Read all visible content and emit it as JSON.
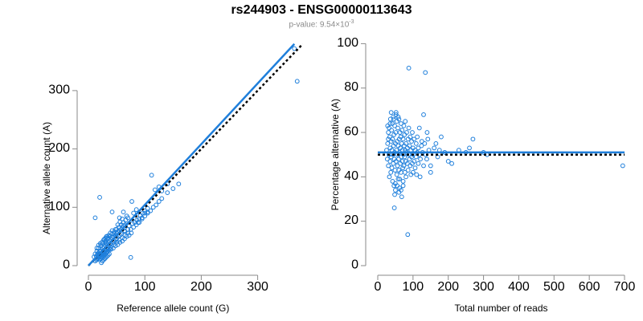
{
  "title": "rs244903 - ENSG00000113643",
  "subtitle": {
    "prefix": "p-value: 9.54×10",
    "exponent": "-3"
  },
  "colors": {
    "points": "#1f7fdb",
    "fit": "#1f7fdb",
    "reference": "#000000",
    "axis": "#8a8a8a"
  },
  "chart_data": [
    {
      "type": "scatter",
      "xlabel": "Reference allele count (G)",
      "ylabel": "Alternative allele count (A)",
      "xlim": [
        0,
        370
      ],
      "ylim": [
        0,
        380
      ],
      "xticks": [
        0,
        100,
        200,
        300
      ],
      "yticks": [
        0,
        100,
        200,
        300
      ],
      "grid": false,
      "points": [
        [
          15,
          10
        ],
        [
          17,
          12
        ],
        [
          18,
          14
        ],
        [
          20,
          15
        ],
        [
          22,
          18
        ],
        [
          24,
          20
        ],
        [
          26,
          22
        ],
        [
          28,
          24
        ],
        [
          30,
          26
        ],
        [
          16,
          20
        ],
        [
          18,
          22
        ],
        [
          20,
          24
        ],
        [
          22,
          26
        ],
        [
          25,
          30
        ],
        [
          28,
          32
        ],
        [
          30,
          35
        ],
        [
          32,
          38
        ],
        [
          35,
          40
        ],
        [
          38,
          42
        ],
        [
          40,
          45
        ],
        [
          42,
          48
        ],
        [
          45,
          50
        ],
        [
          48,
          52
        ],
        [
          50,
          55
        ],
        [
          52,
          58
        ],
        [
          55,
          60
        ],
        [
          58,
          62
        ],
        [
          60,
          65
        ],
        [
          62,
          68
        ],
        [
          65,
          70
        ],
        [
          14,
          16
        ],
        [
          16,
          18
        ],
        [
          19,
          17
        ],
        [
          21,
          19
        ],
        [
          23,
          21
        ],
        [
          25,
          23
        ],
        [
          27,
          25
        ],
        [
          29,
          27
        ],
        [
          31,
          29
        ],
        [
          33,
          31
        ],
        [
          12,
          8
        ],
        [
          14,
          10
        ],
        [
          16,
          12
        ],
        [
          18,
          16
        ],
        [
          20,
          20
        ],
        [
          24,
          18
        ],
        [
          26,
          20
        ],
        [
          28,
          22
        ],
        [
          32,
          28
        ],
        [
          34,
          30
        ],
        [
          36,
          34
        ],
        [
          38,
          36
        ],
        [
          40,
          38
        ],
        [
          44,
          40
        ],
        [
          46,
          42
        ],
        [
          48,
          44
        ],
        [
          50,
          46
        ],
        [
          54,
          50
        ],
        [
          56,
          52
        ],
        [
          58,
          54
        ],
        [
          10,
          15
        ],
        [
          12,
          20
        ],
        [
          15,
          25
        ],
        [
          18,
          30
        ],
        [
          22,
          34
        ],
        [
          26,
          38
        ],
        [
          30,
          42
        ],
        [
          34,
          46
        ],
        [
          38,
          50
        ],
        [
          42,
          54
        ],
        [
          46,
          58
        ],
        [
          50,
          62
        ],
        [
          54,
          66
        ],
        [
          58,
          70
        ],
        [
          62,
          74
        ],
        [
          66,
          78
        ],
        [
          70,
          82
        ],
        [
          35,
          28
        ],
        [
          40,
          32
        ],
        [
          45,
          36
        ],
        [
          50,
          40
        ],
        [
          55,
          44
        ],
        [
          60,
          48
        ],
        [
          65,
          52
        ],
        [
          70,
          56
        ],
        [
          75,
          62
        ],
        [
          80,
          66
        ],
        [
          85,
          70
        ],
        [
          90,
          74
        ],
        [
          95,
          80
        ],
        [
          100,
          85
        ],
        [
          105,
          90
        ],
        [
          110,
          94
        ],
        [
          115,
          100
        ],
        [
          120,
          104
        ],
        [
          125,
          110
        ],
        [
          130,
          115
        ],
        [
          140,
          125
        ],
        [
          150,
          132
        ],
        [
          160,
          140
        ],
        [
          20,
          117
        ],
        [
          12,
          82
        ],
        [
          42,
          92
        ],
        [
          77,
          110
        ],
        [
          112,
          155
        ],
        [
          100,
          90
        ],
        [
          105,
          92
        ],
        [
          90,
          80
        ],
        [
          95,
          82
        ],
        [
          88,
          74
        ],
        [
          75,
          14
        ],
        [
          55,
          82
        ],
        [
          62,
          92
        ],
        [
          68,
          85
        ],
        [
          130,
          128
        ],
        [
          125,
          135
        ],
        [
          140,
          140
        ],
        [
          118,
          130
        ],
        [
          80,
          90
        ],
        [
          85,
          96
        ],
        [
          65,
          58
        ],
        [
          70,
          62
        ],
        [
          72,
          68
        ],
        [
          78,
          72
        ],
        [
          82,
          74
        ],
        [
          86,
          78
        ],
        [
          92,
          86
        ],
        [
          96,
          90
        ],
        [
          100,
          94
        ],
        [
          105,
          98
        ],
        [
          30,
          40
        ],
        [
          28,
          45
        ],
        [
          35,
          48
        ],
        [
          32,
          50
        ],
        [
          45,
          55
        ],
        [
          48,
          62
        ],
        [
          52,
          70
        ],
        [
          56,
          75
        ],
        [
          60,
          80
        ],
        [
          64,
          60
        ],
        [
          40,
          28
        ],
        [
          44,
          30
        ],
        [
          48,
          34
        ],
        [
          52,
          36
        ],
        [
          56,
          40
        ],
        [
          60,
          42
        ],
        [
          64,
          46
        ],
        [
          68,
          50
        ],
        [
          72,
          52
        ],
        [
          76,
          56
        ],
        [
          20,
          10
        ],
        [
          22,
          12
        ],
        [
          24,
          14
        ],
        [
          26,
          16
        ],
        [
          28,
          18
        ],
        [
          30,
          20
        ],
        [
          32,
          22
        ],
        [
          34,
          24
        ],
        [
          36,
          26
        ],
        [
          38,
          28
        ],
        [
          15,
          30
        ],
        [
          18,
          35
        ],
        [
          21,
          38
        ],
        [
          24,
          40
        ],
        [
          27,
          44
        ],
        [
          30,
          47
        ],
        [
          33,
          50
        ],
        [
          36,
          52
        ],
        [
          39,
          56
        ],
        [
          42,
          60
        ],
        [
          370,
          316
        ],
        [
          365,
          372
        ],
        [
          23,
          5
        ],
        [
          25,
          8
        ],
        [
          27,
          10
        ],
        [
          29,
          12
        ],
        [
          31,
          14
        ],
        [
          33,
          16
        ],
        [
          35,
          18
        ],
        [
          37,
          20
        ]
      ],
      "fit_line": [
        [
          0,
          0
        ],
        [
          365,
          380
        ]
      ],
      "reference_line": [
        [
          0,
          0
        ],
        [
          380,
          380
        ]
      ]
    },
    {
      "type": "scatter",
      "xlabel": "Total number of reads",
      "ylabel": "Percentage alternative (A)",
      "xlim": [
        0,
        700
      ],
      "ylim": [
        0,
        100
      ],
      "xticks": [
        0,
        100,
        200,
        300,
        400,
        500,
        600,
        700
      ],
      "yticks": [
        0,
        20,
        40,
        60,
        80,
        100
      ],
      "grid": false,
      "points": [
        [
          25,
          52
        ],
        [
          27,
          48
        ],
        [
          28,
          55
        ],
        [
          30,
          45
        ],
        [
          30,
          60
        ],
        [
          32,
          50
        ],
        [
          32,
          62
        ],
        [
          33,
          40
        ],
        [
          34,
          58
        ],
        [
          35,
          47
        ],
        [
          35,
          53
        ],
        [
          36,
          66
        ],
        [
          37,
          42
        ],
        [
          38,
          56
        ],
        [
          38,
          49
        ],
        [
          39,
          61
        ],
        [
          40,
          44
        ],
        [
          40,
          52
        ],
        [
          41,
          64
        ],
        [
          42,
          38
        ],
        [
          42,
          57
        ],
        [
          43,
          50
        ],
        [
          44,
          46
        ],
        [
          44,
          67
        ],
        [
          45,
          54
        ],
        [
          46,
          36
        ],
        [
          46,
          59
        ],
        [
          47,
          48
        ],
        [
          48,
          51
        ],
        [
          48,
          63
        ],
        [
          49,
          43
        ],
        [
          50,
          55
        ],
        [
          50,
          34
        ],
        [
          51,
          60
        ],
        [
          52,
          47
        ],
        [
          52,
          69
        ],
        [
          53,
          52
        ],
        [
          54,
          41
        ],
        [
          54,
          65
        ],
        [
          55,
          56
        ],
        [
          56,
          45
        ],
        [
          56,
          50
        ],
        [
          57,
          62
        ],
        [
          58,
          39
        ],
        [
          58,
          54
        ],
        [
          59,
          48
        ],
        [
          60,
          66
        ],
        [
          60,
          43
        ],
        [
          61,
          57
        ],
        [
          62,
          51
        ],
        [
          62,
          35
        ],
        [
          63,
          60
        ],
        [
          64,
          46
        ],
        [
          64,
          53
        ],
        [
          65,
          58
        ],
        [
          66,
          42
        ],
        [
          66,
          64
        ],
        [
          67,
          49
        ],
        [
          68,
          55
        ],
        [
          68,
          31
        ],
        [
          69,
          61
        ],
        [
          70,
          47
        ],
        [
          70,
          52
        ],
        [
          71,
          44
        ],
        [
          72,
          57
        ],
        [
          72,
          38
        ],
        [
          73,
          50
        ],
        [
          74,
          63
        ],
        [
          74,
          45
        ],
        [
          75,
          54
        ],
        [
          76,
          49
        ],
        [
          76,
          59
        ],
        [
          77,
          42
        ],
        [
          78,
          52
        ],
        [
          78,
          65
        ],
        [
          79,
          47
        ],
        [
          80,
          55
        ],
        [
          80,
          40
        ],
        [
          82,
          51
        ],
        [
          82,
          60
        ],
        [
          84,
          46
        ],
        [
          84,
          53
        ],
        [
          86,
          57
        ],
        [
          86,
          43
        ],
        [
          88,
          50
        ],
        [
          88,
          62
        ],
        [
          90,
          48
        ],
        [
          90,
          54
        ],
        [
          92,
          45
        ],
        [
          92,
          58
        ],
        [
          94,
          52
        ],
        [
          94,
          41
        ],
        [
          96,
          56
        ],
        [
          96,
          49
        ],
        [
          98,
          60
        ],
        [
          98,
          46
        ],
        [
          100,
          53
        ],
        [
          100,
          50
        ],
        [
          103,
          47
        ],
        [
          103,
          57
        ],
        [
          106,
          52
        ],
        [
          106,
          44
        ],
        [
          109,
          55
        ],
        [
          109,
          49
        ],
        [
          112,
          51
        ],
        [
          112,
          58
        ],
        [
          115,
          46
        ],
        [
          115,
          53
        ],
        [
          118,
          50
        ],
        [
          118,
          62
        ],
        [
          121,
          48
        ],
        [
          124,
          54
        ],
        [
          127,
          51
        ],
        [
          130,
          45
        ],
        [
          133,
          55
        ],
        [
          136,
          50
        ],
        [
          139,
          48
        ],
        [
          142,
          57
        ],
        [
          145,
          52
        ],
        [
          150,
          45
        ],
        [
          88,
          89
        ],
        [
          135,
          87
        ],
        [
          85,
          14
        ],
        [
          47,
          26
        ],
        [
          130,
          68
        ],
        [
          180,
          58
        ],
        [
          230,
          52
        ],
        [
          250,
          51
        ],
        [
          270,
          57
        ],
        [
          300,
          51
        ],
        [
          310,
          50
        ],
        [
          200,
          47
        ],
        [
          160,
          53
        ],
        [
          170,
          49
        ],
        [
          190,
          51
        ],
        [
          55,
          36
        ],
        [
          60,
          33
        ],
        [
          48,
          32
        ],
        [
          52,
          68
        ],
        [
          58,
          67
        ],
        [
          35,
          64
        ],
        [
          30,
          57
        ],
        [
          28,
          63
        ],
        [
          38,
          69
        ],
        [
          45,
          66
        ],
        [
          50,
          37
        ],
        [
          62,
          39
        ],
        [
          66,
          34
        ],
        [
          72,
          36
        ],
        [
          120,
          40
        ],
        [
          150,
          42
        ],
        [
          260,
          53
        ],
        [
          695,
          45
        ],
        [
          210,
          46
        ],
        [
          100,
          42
        ],
        [
          110,
          41
        ],
        [
          125,
          56
        ],
        [
          140,
          60
        ],
        [
          165,
          55
        ],
        [
          175,
          52
        ]
      ],
      "fit_line": [
        [
          0,
          51
        ],
        [
          700,
          51
        ]
      ],
      "reference_line": [
        [
          0,
          50
        ],
        [
          700,
          50
        ]
      ]
    }
  ]
}
